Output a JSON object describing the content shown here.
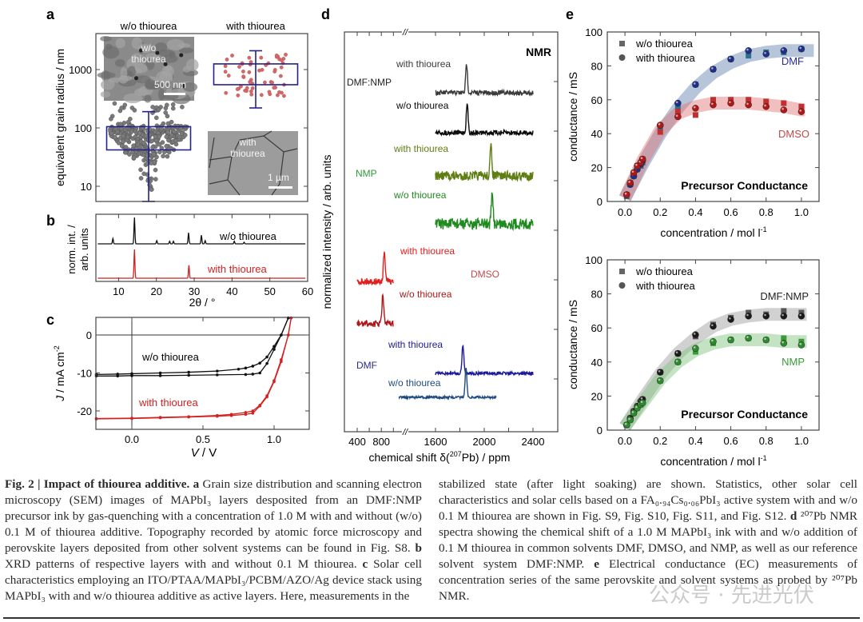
{
  "figure": {
    "panel_labels": [
      "a",
      "b",
      "c",
      "d",
      "e"
    ]
  },
  "chart_data": [
    {
      "panel": "a",
      "type": "scatter",
      "title": "",
      "ylabel": "equivalent grain radius / nm",
      "yscale": "log",
      "ylim": [
        5,
        3500
      ],
      "yticks": [
        10,
        100,
        1000
      ],
      "ytick_labels": [
        "10",
        "100",
        "1000"
      ],
      "categories": [
        "w/o thiourea",
        "with thiourea"
      ],
      "boxes": [
        {
          "name": "w/o thiourea",
          "q1": 42,
          "median": 70,
          "q3": 105,
          "whisker_low": 5.5,
          "whisker_high": 190,
          "color": "#7a7a7a"
        },
        {
          "name": "with thiourea",
          "q1": 550,
          "median": 800,
          "q3": 1250,
          "whisker_low": 220,
          "whisker_high": 2100,
          "color": "#d06a6a"
        }
      ],
      "insets": [
        {
          "label": "w/o thiourea",
          "scalebar": "500 nm"
        },
        {
          "label": "with thiourea",
          "scalebar": "1 µm"
        }
      ]
    },
    {
      "panel": "b",
      "type": "line",
      "xlabel": "2θ / °",
      "ylabel": "norm. int. / arb. units",
      "xlim": [
        4,
        60
      ],
      "xticks": [
        10,
        20,
        30,
        40,
        50,
        60
      ],
      "series": [
        {
          "name": "w/o thiourea",
          "color": "#111111",
          "peaks": [
            [
              8.5,
              0.2
            ],
            [
              14.2,
              1.0
            ],
            [
              20.1,
              0.12
            ],
            [
              23.5,
              0.1
            ],
            [
              24.5,
              0.1
            ],
            [
              28.5,
              0.42
            ],
            [
              31.9,
              0.33
            ],
            [
              32.9,
              0.12
            ],
            [
              40.6,
              0.1
            ],
            [
              43.2,
              0.06
            ]
          ]
        },
        {
          "name": "with thiourea",
          "color": "#d42020",
          "peaks": [
            [
              14.2,
              1.0
            ],
            [
              28.6,
              0.45
            ]
          ]
        }
      ]
    },
    {
      "panel": "c",
      "type": "line",
      "xlabel": "V / V",
      "ylabel": "J / mA cm-2",
      "xlim": [
        -0.25,
        1.25
      ],
      "ylim": [
        -25,
        5
      ],
      "xticks": [
        0.0,
        0.5,
        1.0
      ],
      "xtick_labels": [
        "0.0",
        "0.5",
        "1.0"
      ],
      "yticks": [
        0,
        -10,
        -20
      ],
      "ytick_labels": [
        "0",
        "-10",
        "-20"
      ],
      "series": [
        {
          "name": "w/o thiourea (forward)",
          "color": "#111111",
          "x": [
            -0.25,
            -0.1,
            0.0,
            0.2,
            0.4,
            0.6,
            0.8,
            0.85,
            0.9,
            0.95,
            1.0,
            1.05,
            1.1
          ],
          "y": [
            -10.8,
            -10.8,
            -10.7,
            -10.7,
            -10.6,
            -10.5,
            -10.4,
            -10.3,
            -10.0,
            -7.5,
            -3.8,
            0.0,
            4.5
          ]
        },
        {
          "name": "w/o thiourea (reverse)",
          "color": "#111111",
          "x": [
            -0.25,
            -0.1,
            0.0,
            0.2,
            0.4,
            0.6,
            0.75,
            0.8,
            0.85,
            0.9,
            0.95,
            1.0,
            1.05,
            1.1
          ],
          "y": [
            -10.4,
            -10.3,
            -10.2,
            -10.0,
            -9.8,
            -9.5,
            -9.0,
            -8.7,
            -8.2,
            -7.4,
            -5.8,
            -3.0,
            0.0,
            4.5
          ]
        },
        {
          "name": "with thiourea (forward)",
          "color": "#d42020",
          "x": [
            -0.25,
            0.0,
            0.2,
            0.4,
            0.6,
            0.7,
            0.8,
            0.85,
            0.9,
            0.95,
            1.0,
            1.05,
            1.1,
            1.12
          ],
          "y": [
            -22.1,
            -22.0,
            -21.8,
            -21.6,
            -21.4,
            -21.2,
            -20.9,
            -20.6,
            -18.7,
            -16.3,
            -12.3,
            -7.0,
            0.0,
            4.5
          ]
        },
        {
          "name": "with thiourea (reverse)",
          "color": "#d42020",
          "x": [
            -0.25,
            0.0,
            0.2,
            0.4,
            0.6,
            0.7,
            0.8,
            0.85,
            0.9,
            0.95,
            1.0,
            1.05,
            1.1,
            1.12
          ],
          "y": [
            -22.0,
            -21.9,
            -21.7,
            -21.5,
            -21.2,
            -20.9,
            -20.4,
            -20.0,
            -18.5,
            -16.0,
            -12.0,
            -6.5,
            0.0,
            4.5
          ]
        }
      ],
      "annotations": [
        "w/o thiourea",
        "with thiourea"
      ]
    },
    {
      "panel": "d",
      "type": "line",
      "title": "NMR",
      "xlabel": "chemical shift δ(207Pb) / ppm",
      "ylabel": "normalized intensity / arb. units",
      "xticks": [
        400,
        800,
        1600,
        2000,
        2400
      ],
      "xtick_labels": [
        "400",
        "800",
        "1600",
        "2000",
        "2400"
      ],
      "axis_break": "//",
      "series": [
        {
          "solvent": "DMF:NMP",
          "name": "with thiourea",
          "color": "#3b3b3b",
          "range": [
            1600,
            2400
          ],
          "peak": 1855
        },
        {
          "solvent": "DMF:NMP",
          "name": "w/o thiourea",
          "color": "#0a0a0a",
          "range": [
            1600,
            2400
          ],
          "peak": 1860
        },
        {
          "solvent": "NMP",
          "name": "with thiourea",
          "color": "#5e7d12",
          "range": [
            1600,
            2400
          ],
          "peak": 2055
        },
        {
          "solvent": "NMP",
          "name": "w/o thiourea",
          "color": "#1f8a1f",
          "range": [
            1600,
            2400
          ],
          "peak": 2065
        },
        {
          "solvent": "DMSO",
          "name": "with thiourea",
          "color": "#e02020",
          "range": [
            400,
            1000
          ],
          "peak": 850
        },
        {
          "solvent": "DMSO",
          "name": "w/o thiourea",
          "color": "#b01818",
          "range": [
            400,
            1000
          ],
          "peak": 825
        },
        {
          "solvent": "DMF",
          "name": "with thiourea",
          "color": "#1a1a9a",
          "range": [
            1600,
            2400
          ],
          "peak": 1825
        },
        {
          "solvent": "DMF",
          "name": "w/o thiourea",
          "color": "#1f4a80",
          "range": [
            1300,
            2100
          ],
          "peak": 1850
        }
      ],
      "solvent_labels": [
        {
          "text": "DMF:NMP",
          "color": "#222222"
        },
        {
          "text": "NMP",
          "color": "#2e9a3a"
        },
        {
          "text": "DMSO",
          "color": "#c04a4a"
        },
        {
          "text": "DMF",
          "color": "#2a2a8a"
        }
      ]
    },
    {
      "panel": "e-top",
      "type": "scatter",
      "title": "Precursor Conductance",
      "xlabel": "concentration / mol l-1",
      "ylabel": "conductance / mS",
      "xlim": [
        -0.1,
        1.1
      ],
      "ylim": [
        0,
        100
      ],
      "xticks": [
        0.0,
        0.2,
        0.4,
        0.6,
        0.8,
        1.0
      ],
      "xtick_labels": [
        "0.0",
        "0.2",
        "0.4",
        "0.6",
        "0.8",
        "1.0"
      ],
      "yticks": [
        0,
        20,
        40,
        60,
        80,
        100
      ],
      "ytick_labels": [
        "0",
        "20",
        "40",
        "60",
        "80",
        "100"
      ],
      "legend": [
        "w/o thiourea",
        "with thiourea"
      ],
      "legend_position": "top-left",
      "x": [
        0.01,
        0.03,
        0.05,
        0.07,
        0.09,
        0.1,
        0.2,
        0.3,
        0.4,
        0.5,
        0.6,
        0.7,
        0.8,
        0.9,
        1.0
      ],
      "series": [
        {
          "name": "DMF w/o thiourea",
          "marker": "square",
          "color": "#2f6f8f",
          "y": [
            3,
            10,
            15,
            19,
            21,
            23,
            44,
            56,
            69,
            78,
            84,
            86,
            88,
            88,
            90
          ]
        },
        {
          "name": "DMF with thiourea",
          "marker": "circle",
          "color": "#1f2f8a",
          "y": [
            4,
            10,
            15,
            19,
            22,
            24,
            45,
            58,
            69,
            78,
            84,
            89,
            87,
            89,
            90
          ]
        },
        {
          "name": "DMSO w/o thiourea",
          "marker": "square",
          "color": "#c03030",
          "y": [
            4,
            11,
            17,
            21,
            23,
            25,
            41,
            53,
            51,
            60,
            60,
            60,
            59,
            58,
            56
          ]
        },
        {
          "name": "DMSO with thiourea",
          "marker": "circle",
          "color": "#b01818",
          "y": [
            4,
            11,
            17,
            21,
            23,
            25,
            45,
            50,
            55,
            57,
            58,
            57,
            56,
            54,
            53
          ]
        }
      ],
      "bands": [
        {
          "name": "DMF",
          "color": "#5f7fae",
          "x": [
            0.0,
            0.1,
            0.2,
            0.3,
            0.4,
            0.5,
            0.6,
            0.7,
            0.8,
            0.9,
            1.0,
            1.07
          ],
          "y": [
            2,
            22,
            40,
            55,
            67,
            76,
            82,
            86,
            88,
            89,
            89,
            89
          ]
        },
        {
          "name": "DMSO",
          "color": "#e07070",
          "x": [
            0.0,
            0.1,
            0.2,
            0.3,
            0.4,
            0.5,
            0.6,
            0.7,
            0.8,
            0.9,
            1.0,
            1.02
          ],
          "y": [
            2,
            24,
            42,
            52,
            56,
            58,
            58,
            58,
            57,
            56,
            54,
            54
          ]
        }
      ],
      "annotations": [
        {
          "text": "DMF",
          "color": "#2a2aa0"
        },
        {
          "text": "DMSO",
          "color": "#c04a4a"
        }
      ]
    },
    {
      "panel": "e-bottom",
      "type": "scatter",
      "title": "Precursor Conductance",
      "xlabel": "concentration / mol l-1",
      "ylabel": "conductance / mS",
      "xlim": [
        -0.1,
        1.1
      ],
      "ylim": [
        0,
        100
      ],
      "xticks": [
        0.0,
        0.2,
        0.4,
        0.6,
        0.8,
        1.0
      ],
      "xtick_labels": [
        "0.0",
        "0.2",
        "0.4",
        "0.6",
        "0.8",
        "1.0"
      ],
      "yticks": [
        0,
        20,
        40,
        60,
        80,
        100
      ],
      "ytick_labels": [
        "0",
        "20",
        "40",
        "60",
        "80",
        "100"
      ],
      "legend": [
        "w/o thiourea",
        "with thiourea"
      ],
      "legend_position": "top-left",
      "x": [
        0.01,
        0.03,
        0.05,
        0.07,
        0.09,
        0.1,
        0.2,
        0.3,
        0.4,
        0.5,
        0.6,
        0.7,
        0.8,
        0.9,
        1.0
      ],
      "series": [
        {
          "name": "DMF:NMP w/o thiourea",
          "marker": "square",
          "color": "#555555",
          "y": [
            3,
            7,
            11,
            14,
            16,
            18,
            34,
            45,
            55,
            62,
            66,
            69,
            68,
            70,
            69
          ]
        },
        {
          "name": "DMF:NMP with thiourea",
          "marker": "circle",
          "color": "#1a1a1a",
          "y": [
            3,
            7,
            11,
            14,
            17,
            18,
            34,
            45,
            56,
            61,
            65,
            67,
            67,
            67,
            67
          ]
        },
        {
          "name": "NMP w/o thiourea",
          "marker": "square",
          "color": "#3a9a3a",
          "y": [
            3,
            6,
            10,
            13,
            15,
            16,
            29,
            40,
            46,
            51,
            53,
            54,
            53,
            54,
            52
          ]
        },
        {
          "name": "NMP with thiourea",
          "marker": "circle",
          "color": "#2e8a2e",
          "y": [
            3,
            6,
            10,
            13,
            15,
            16,
            29,
            40,
            48,
            52,
            53,
            54,
            53,
            51,
            50
          ]
        }
      ],
      "bands": [
        {
          "name": "DMF:NMP",
          "color": "#9a9a9a",
          "x": [
            0.0,
            0.1,
            0.2,
            0.3,
            0.4,
            0.5,
            0.6,
            0.7,
            0.8,
            0.9,
            1.0,
            1.03
          ],
          "y": [
            2,
            18,
            33,
            45,
            54,
            61,
            65,
            67,
            68,
            68,
            68,
            68
          ]
        },
        {
          "name": "NMP",
          "color": "#7ac07a",
          "x": [
            0.0,
            0.1,
            0.2,
            0.3,
            0.4,
            0.5,
            0.6,
            0.7,
            0.8,
            0.9,
            1.0,
            1.03
          ],
          "y": [
            2,
            16,
            30,
            40,
            47,
            51,
            53,
            53,
            53,
            52,
            52,
            52
          ]
        }
      ],
      "annotations": [
        {
          "text": "DMF:NMP",
          "color": "#222222"
        },
        {
          "text": "NMP",
          "color": "#3a9a3a"
        }
      ]
    }
  ],
  "caption": {
    "left": {
      "fig_label": "Fig. 2 | Impact of thiourea additive.",
      "a_label": "a",
      "a_text": "Grain size distribution and scanning electron microscopy (SEM) images of MAPbI₃ layers desposited from an DMF:NMP precursor ink by gas-quenching with a concentration of 1.0 M with and without (w/o) 0.1 M of thiourea additive. Topography recorded by atomic force microscopy and perovskite layers deposited from other solvent systems can be found in Fig. S8.",
      "b_label": "b",
      "b_text": "XRD patterns of respective layers with and without 0.1 M thiourea.",
      "c_label": "c",
      "c_text": "Solar cell characteristics employing an ITO/PTAA/MAPbI₃/PCBM/AZO/Ag device stack using MAPbI₃ with and w/o thiourea additive as active layers. Here, measurements in the"
    },
    "right": {
      "c_cont": "stabilized state (after light soaking) are shown. Statistics, other solar cell characteristics and solar cells based on a FA₀.₉₄Cs₀.₀₆PbI₃ active system with and w/o 0.1 M thiourea are shown in Fig. S9, Fig. S10, Fig. S11, and Fig. S12.",
      "d_label": "d",
      "d_text": "²⁰⁷Pb NMR spectra showing the chemical shift of a 1.0 M MAPbI₃ ink with and w/o addition of 0.1 M thiourea in common solvents DMF, DMSO, and NMP, as well as our reference solvent system DMF:NMP.",
      "e_label": "e",
      "e_text": "Electrical conductance (EC) measurements of concentration series of the same perovskite and solvent systems as probed by ²⁰⁷Pb NMR."
    },
    "watermark": "公众号 · 先进光伏"
  }
}
